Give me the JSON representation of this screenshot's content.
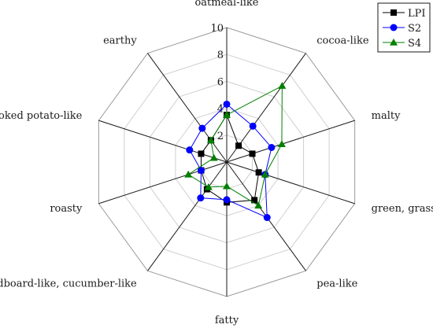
{
  "chart_data": {
    "type": "radar",
    "axes": [
      "oatmeal-like",
      "cocoa-like",
      "malty",
      "green, grassy",
      "pea-like",
      "fatty",
      "cardboard-like, cucumber-like",
      "roasty",
      "cooked potato-like",
      "earthy"
    ],
    "ticks": [
      "0",
      "2",
      "4",
      "6",
      "8",
      "10"
    ],
    "tick_values": [
      0,
      2,
      4,
      6,
      8,
      10
    ],
    "range": [
      0,
      10
    ],
    "grid": true,
    "legend_position": "top-right",
    "series": [
      {
        "name": "LPI",
        "color": "#000000",
        "marker": "square",
        "values": [
          3.5,
          1.5,
          2.0,
          2.5,
          3.5,
          3.0,
          2.5,
          2.0,
          2.0,
          2.0
        ]
      },
      {
        "name": "S2",
        "color": "#0000ff",
        "marker": "circle",
        "values": [
          4.3,
          3.3,
          3.5,
          3.0,
          5.1,
          2.8,
          3.3,
          2.0,
          2.9,
          3.1
        ]
      },
      {
        "name": "S4",
        "color": "#008000",
        "marker": "triangle",
        "values": [
          3.5,
          7.0,
          4.3,
          3.0,
          4.0,
          1.8,
          2.3,
          3.0,
          1.0,
          2.0
        ]
      }
    ]
  }
}
